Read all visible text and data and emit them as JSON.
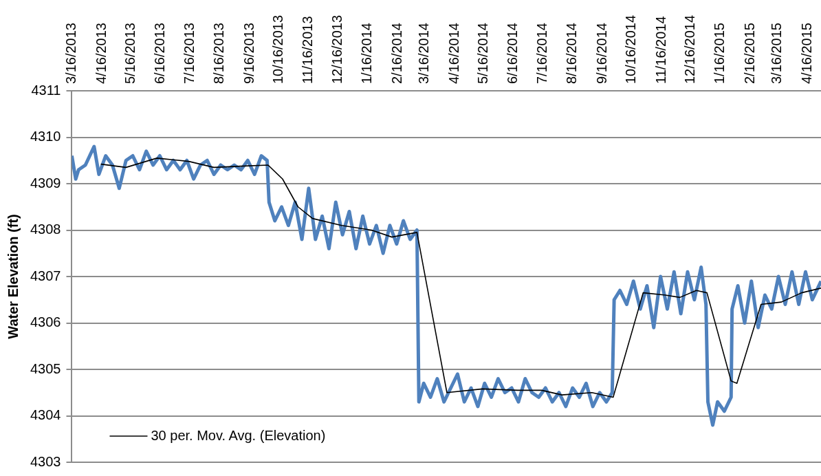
{
  "chart_data": {
    "type": "line",
    "ylabel": "Water Elevation (ft)",
    "xlim": [
      "2013-03-16",
      "2015-04-30"
    ],
    "xticks": [
      {
        "value": "2013-03-16",
        "label": "3/16/2013"
      },
      {
        "value": "2013-04-16",
        "label": "4/16/2013"
      },
      {
        "value": "2013-05-16",
        "label": "5/16/2013"
      },
      {
        "value": "2013-06-16",
        "label": "6/16/2013"
      },
      {
        "value": "2013-07-16",
        "label": "7/16/2013"
      },
      {
        "value": "2013-08-16",
        "label": "8/16/2013"
      },
      {
        "value": "2013-09-16",
        "label": "9/16/2013"
      },
      {
        "value": "2013-10-16",
        "label": "10/16/2013"
      },
      {
        "value": "2013-11-16",
        "label": "11/16/2013"
      },
      {
        "value": "2013-12-16",
        "label": "12/16/2013"
      },
      {
        "value": "2014-01-16",
        "label": "1/16/2014"
      },
      {
        "value": "2014-02-16",
        "label": "2/16/2014"
      },
      {
        "value": "2014-03-16",
        "label": "3/16/2014"
      },
      {
        "value": "2014-04-16",
        "label": "4/16/2014"
      },
      {
        "value": "2014-05-16",
        "label": "5/16/2014"
      },
      {
        "value": "2014-06-16",
        "label": "6/16/2014"
      },
      {
        "value": "2014-07-16",
        "label": "7/16/2014"
      },
      {
        "value": "2014-08-16",
        "label": "8/16/2014"
      },
      {
        "value": "2014-09-16",
        "label": "9/16/2014"
      },
      {
        "value": "2014-10-16",
        "label": "10/16/2014"
      },
      {
        "value": "2014-11-16",
        "label": "11/16/2014"
      },
      {
        "value": "2014-12-16",
        "label": "12/16/2014"
      },
      {
        "value": "2015-01-16",
        "label": "1/16/2015"
      },
      {
        "value": "2015-02-16",
        "label": "2/16/2015"
      },
      {
        "value": "2015-03-16",
        "label": "3/16/2015"
      },
      {
        "value": "2015-04-16",
        "label": "4/16/2015"
      }
    ],
    "ylim": [
      4303,
      4311
    ],
    "yticks": [
      4303,
      4304,
      4305,
      4306,
      4307,
      4308,
      4309,
      4310,
      4311
    ],
    "grid": "y",
    "legend": "bottom left",
    "series": [
      {
        "color": "#4f81bd",
        "x": [
          "2013-03-16",
          "2013-03-20",
          "2013-03-23",
          "2013-03-30",
          "2013-04-08",
          "2013-04-13",
          "2013-04-20",
          "2013-04-27",
          "2013-05-04",
          "2013-05-11",
          "2013-05-18",
          "2013-05-25",
          "2013-06-01",
          "2013-06-08",
          "2013-06-15",
          "2013-06-22",
          "2013-06-29",
          "2013-07-06",
          "2013-07-13",
          "2013-07-20",
          "2013-07-27",
          "2013-08-03",
          "2013-08-10",
          "2013-08-17",
          "2013-08-24",
          "2013-08-31",
          "2013-09-07",
          "2013-09-14",
          "2013-09-21",
          "2013-09-28",
          "2013-10-04",
          "2013-10-06",
          "2013-10-12",
          "2013-10-19",
          "2013-10-26",
          "2013-11-02",
          "2013-11-09",
          "2013-11-16",
          "2013-11-23",
          "2013-11-30",
          "2013-12-07",
          "2013-12-14",
          "2013-12-21",
          "2013-12-28",
          "2014-01-04",
          "2014-01-11",
          "2014-01-18",
          "2014-01-25",
          "2014-02-01",
          "2014-02-08",
          "2014-02-15",
          "2014-02-22",
          "2014-03-01",
          "2014-03-08",
          "2014-03-10",
          "2014-03-15",
          "2014-03-22",
          "2014-03-29",
          "2014-04-05",
          "2014-04-12",
          "2014-04-19",
          "2014-04-26",
          "2014-05-03",
          "2014-05-10",
          "2014-05-17",
          "2014-05-24",
          "2014-05-31",
          "2014-06-07",
          "2014-06-14",
          "2014-06-21",
          "2014-06-28",
          "2014-07-05",
          "2014-07-12",
          "2014-07-19",
          "2014-07-26",
          "2014-08-02",
          "2014-08-09",
          "2014-08-16",
          "2014-08-23",
          "2014-08-30",
          "2014-09-06",
          "2014-09-13",
          "2014-09-20",
          "2014-09-26",
          "2014-09-28",
          "2014-10-04",
          "2014-10-11",
          "2014-10-18",
          "2014-10-25",
          "2014-11-01",
          "2014-11-08",
          "2014-11-15",
          "2014-11-22",
          "2014-11-29",
          "2014-12-06",
          "2014-12-13",
          "2014-12-20",
          "2014-12-27",
          "2015-01-01",
          "2015-01-03",
          "2015-01-08",
          "2015-01-13",
          "2015-01-20",
          "2015-01-27",
          "2015-01-28",
          "2015-02-03",
          "2015-02-10",
          "2015-02-17",
          "2015-02-24",
          "2015-03-03",
          "2015-03-10",
          "2015-03-17",
          "2015-03-24",
          "2015-03-31",
          "2015-04-07",
          "2015-04-14",
          "2015-04-21",
          "2015-04-30"
        ],
        "values": [
          4309.6,
          4309.1,
          4309.3,
          4309.4,
          4309.8,
          4309.2,
          4309.6,
          4309.4,
          4308.9,
          4309.5,
          4309.6,
          4309.3,
          4309.7,
          4309.4,
          4309.6,
          4309.3,
          4309.5,
          4309.3,
          4309.5,
          4309.1,
          4309.4,
          4309.5,
          4309.2,
          4309.4,
          4309.3,
          4309.4,
          4309.3,
          4309.5,
          4309.2,
          4309.6,
          4309.5,
          4308.6,
          4308.2,
          4308.5,
          4308.1,
          4308.6,
          4307.8,
          4308.9,
          4307.8,
          4308.3,
          4307.6,
          4308.6,
          4307.9,
          4308.4,
          4307.6,
          4308.3,
          4307.7,
          4308.1,
          4307.5,
          4308.1,
          4307.7,
          4308.2,
          4307.8,
          4308.0,
          4304.3,
          4304.7,
          4304.4,
          4304.8,
          4304.3,
          4304.6,
          4304.9,
          4304.3,
          4304.6,
          4304.2,
          4304.7,
          4304.4,
          4304.8,
          4304.5,
          4304.6,
          4304.3,
          4304.8,
          4304.5,
          4304.4,
          4304.6,
          4304.3,
          4304.5,
          4304.2,
          4304.6,
          4304.4,
          4304.7,
          4304.2,
          4304.5,
          4304.3,
          4304.5,
          4306.5,
          4306.7,
          4306.4,
          4306.9,
          4306.3,
          4306.8,
          4305.9,
          4307.0,
          4306.3,
          4307.1,
          4306.2,
          4307.1,
          4306.5,
          4307.2,
          4306.4,
          4304.3,
          4303.8,
          4304.3,
          4304.1,
          4304.4,
          4306.3,
          4306.8,
          4306.0,
          4306.9,
          4305.9,
          4306.6,
          4306.3,
          4307.0,
          4306.4,
          4307.1,
          4306.4,
          4307.1,
          4306.5,
          4306.9
        ]
      },
      {
        "name": "30 per. Mov. Avg. (Elevation)",
        "color": "#000000",
        "x": [
          "2013-04-15",
          "2013-05-11",
          "2013-06-12",
          "2013-07-15",
          "2013-08-10",
          "2013-09-10",
          "2013-10-05",
          "2013-10-20",
          "2013-11-05",
          "2013-11-20",
          "2013-12-20",
          "2014-01-20",
          "2014-02-10",
          "2014-03-08",
          "2014-04-08",
          "2014-05-15",
          "2014-06-20",
          "2014-07-15",
          "2014-08-05",
          "2014-09-05",
          "2014-09-27",
          "2014-10-28",
          "2014-11-20",
          "2014-12-05",
          "2014-12-22",
          "2015-01-02",
          "2015-01-27",
          "2015-02-02",
          "2015-02-27",
          "2015-03-20",
          "2015-04-10",
          "2015-04-30"
        ],
        "values": [
          4309.42,
          4309.35,
          4309.55,
          4309.48,
          4309.35,
          4309.38,
          4309.4,
          4309.1,
          4308.5,
          4308.25,
          4308.1,
          4308.0,
          4307.85,
          4307.95,
          4304.5,
          4304.58,
          4304.55,
          4304.55,
          4304.45,
          4304.5,
          4304.4,
          4306.65,
          4306.6,
          4306.55,
          4306.7,
          4306.65,
          4304.75,
          4304.7,
          4306.4,
          4306.45,
          4306.65,
          4306.75
        ]
      }
    ]
  }
}
